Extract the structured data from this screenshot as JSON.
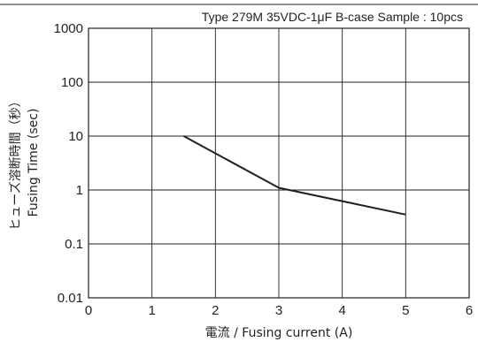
{
  "chart_data": {
    "type": "line",
    "title": "Type 279M 35VDC-1μF B-case Sample : 10pcs",
    "xlabel": "電流 / Fusing current (A)",
    "ylabel_jp": "ヒューズ溶断時間（秒）",
    "ylabel_en": "Fusing Time (sec)",
    "y_scale": "log",
    "xlim": [
      0,
      6
    ],
    "ylim": [
      0.01,
      1000
    ],
    "grid": true,
    "x_ticks": [
      "0",
      "1",
      "2",
      "3",
      "4",
      "5",
      "6"
    ],
    "y_ticks": [
      "1000",
      "100",
      "10",
      "1",
      "0.1",
      "0.01"
    ],
    "series": [
      {
        "x": [
          1.5,
          3.0,
          5.0
        ],
        "y": [
          10,
          1.1,
          0.35
        ]
      }
    ]
  }
}
